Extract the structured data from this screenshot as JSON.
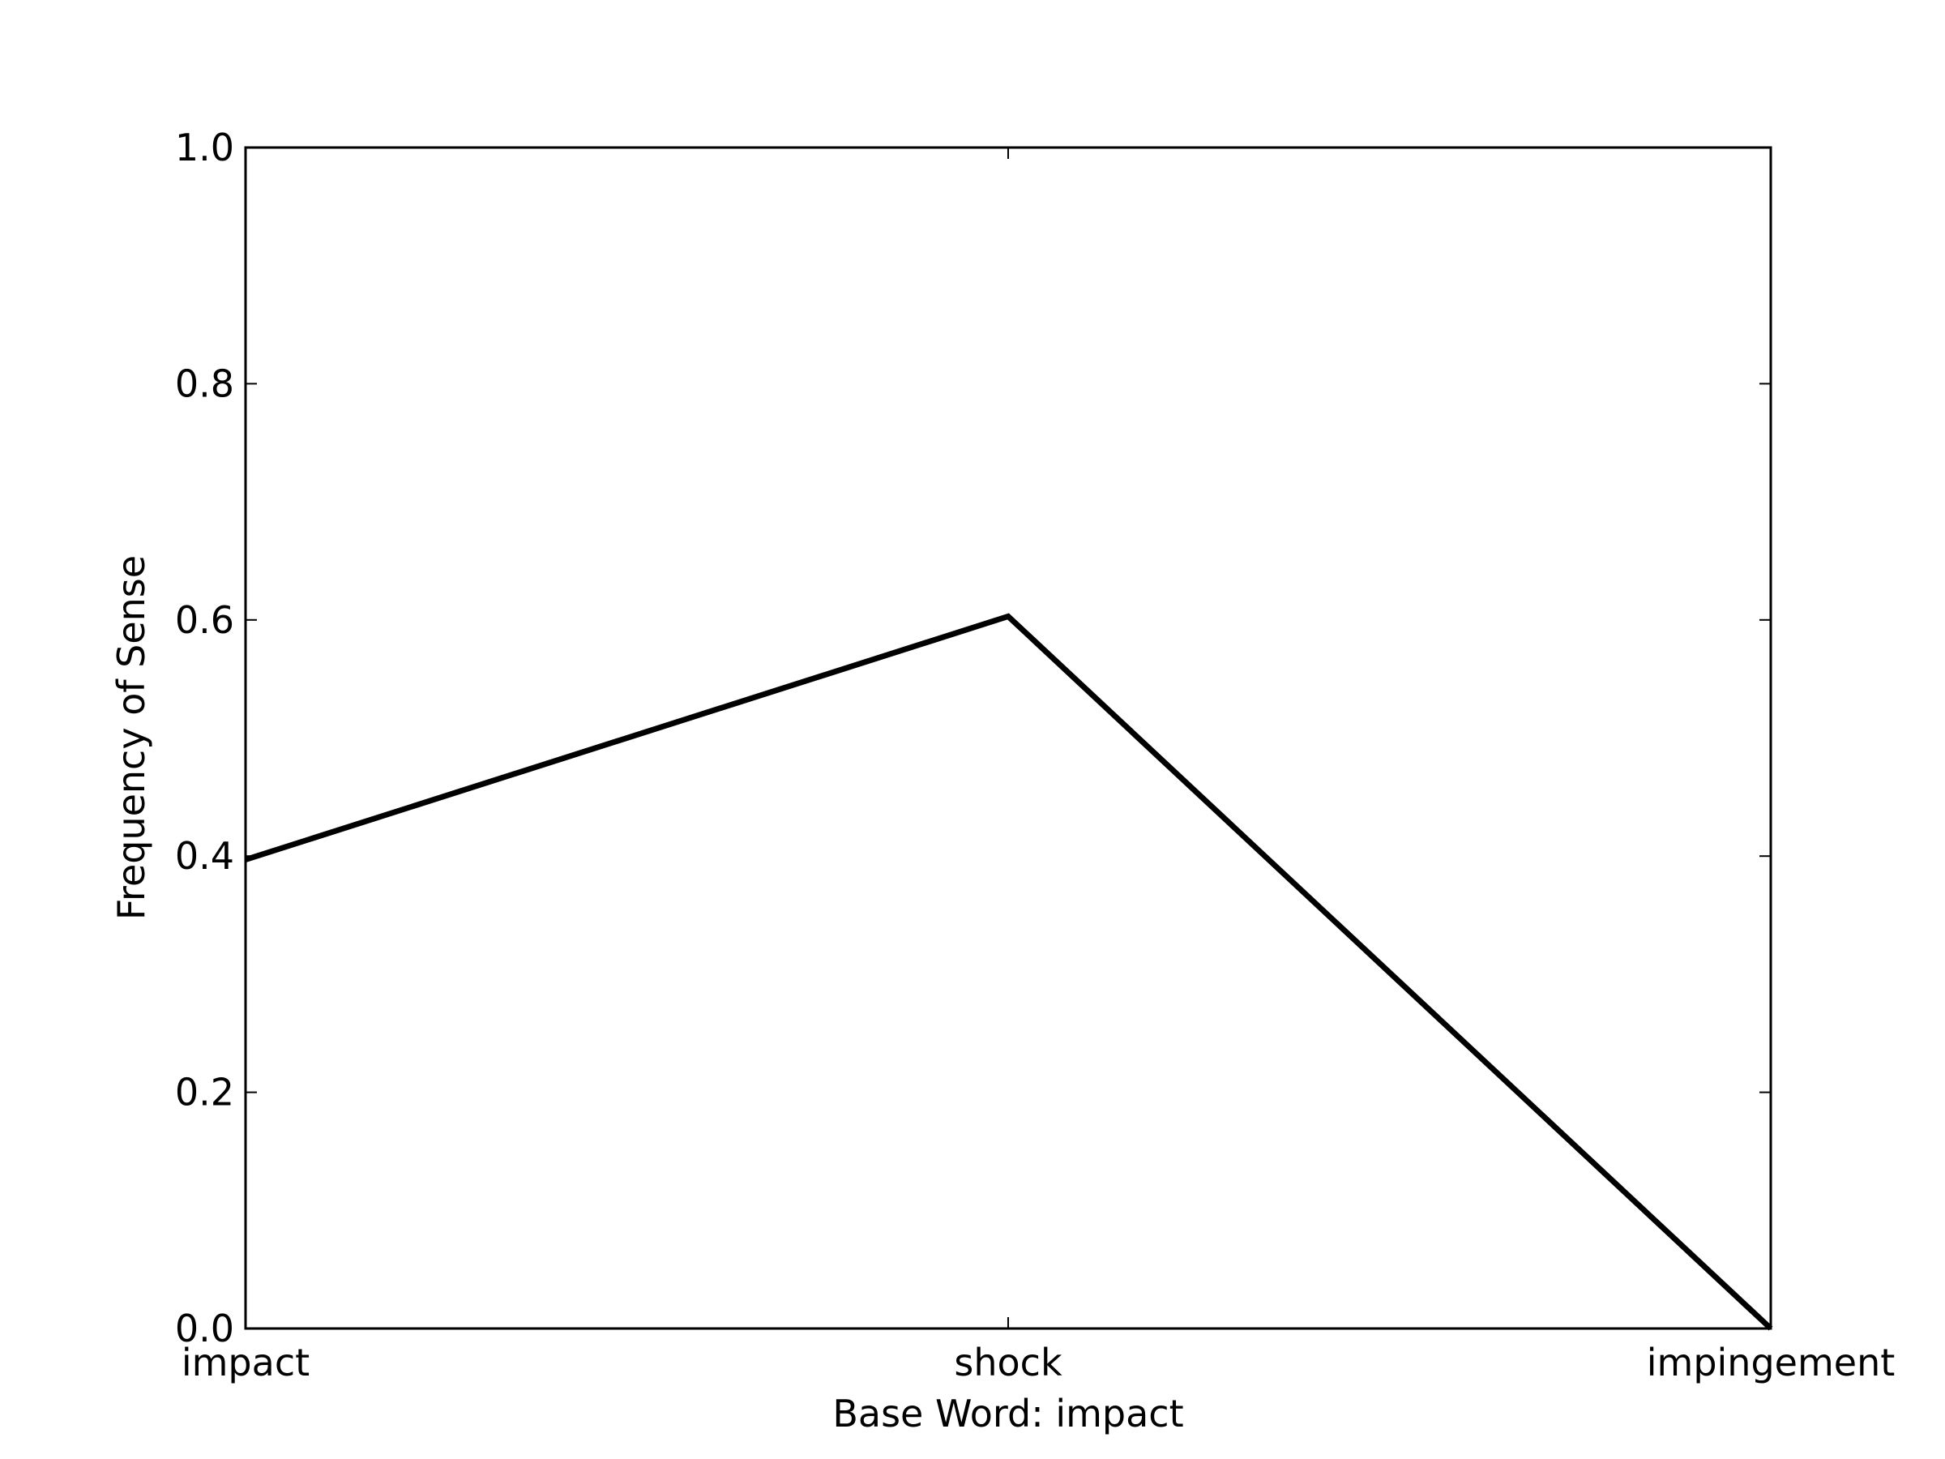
{
  "chart_data": {
    "type": "line",
    "categories": [
      "impact",
      "shock",
      "impingement"
    ],
    "values": [
      0.397,
      0.603,
      0.0
    ],
    "xlabel": "Base Word: impact",
    "ylabel": "Frequency of Sense",
    "ylim": [
      0,
      1
    ],
    "y_ticks": [
      "0.0",
      "0.2",
      "0.4",
      "0.6",
      "0.8",
      "1.0"
    ],
    "line_color": "#000000",
    "grid": false,
    "legend": false
  }
}
